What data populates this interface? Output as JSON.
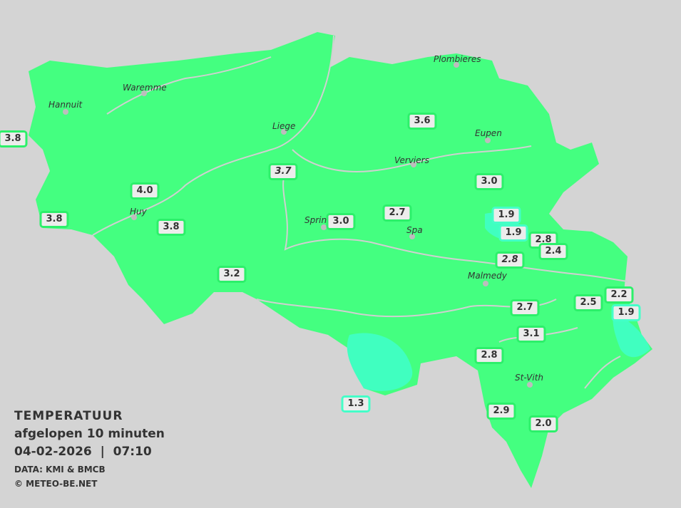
{
  "legend": {
    "title": "TEMPERATUUR",
    "subtitle": "afgelopen 10 minuten",
    "datetime": "04-02-2026  |  07:10",
    "source": "DATA: KMI & BMCB",
    "copyright": "© METEO-BE.NET"
  },
  "colors": {
    "background": "#d4d4d4",
    "land": "#44ff80",
    "cold_zone": "#40ffc0",
    "rivers": "#d0d0d0",
    "label_border": "#2cf06a",
    "label_border_cold": "#44ffc8"
  },
  "cities": [
    "Plombieres",
    "Waremme",
    "Hannuit",
    "Liege",
    "Eupen",
    "Verviers",
    "Huy",
    "Sprin",
    "Spa",
    "Malmedy",
    "St-Vith"
  ],
  "stations": [
    {
      "value": "3.8"
    },
    {
      "value": "3.6"
    },
    {
      "value": "3.7",
      "italic": true
    },
    {
      "value": "4.0"
    },
    {
      "value": "3.0"
    },
    {
      "value": "3.8"
    },
    {
      "value": "3.8"
    },
    {
      "value": "3.0"
    },
    {
      "value": "2.7"
    },
    {
      "value": "1.9",
      "cold": true
    },
    {
      "value": "1.9",
      "cold": true
    },
    {
      "value": "2.8"
    },
    {
      "value": "2.4"
    },
    {
      "value": "2.8",
      "italic": true
    },
    {
      "value": "3.2"
    },
    {
      "value": "2.5"
    },
    {
      "value": "2.2"
    },
    {
      "value": "1.9",
      "cold": true
    },
    {
      "value": "2.7"
    },
    {
      "value": "3.1"
    },
    {
      "value": "2.8"
    },
    {
      "value": "1.3",
      "cold": true
    },
    {
      "value": "2.9"
    },
    {
      "value": "2.0"
    }
  ]
}
